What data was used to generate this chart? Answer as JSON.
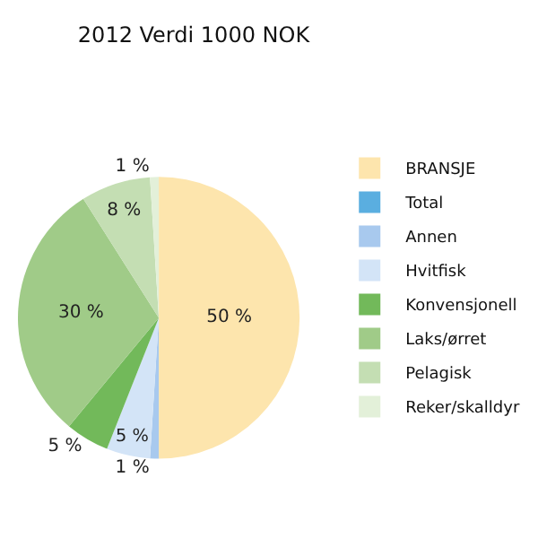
{
  "chart_data": {
    "type": "pie",
    "title": "2012 Verdi 1000 NOK",
    "categories": [
      "BRANSJE",
      "Total",
      "Annen",
      "Hvitfisk",
      "Konvensjonell",
      "Laks/ørret",
      "Pelagisk",
      "Reker/skalldyr"
    ],
    "values": [
      50,
      0,
      1,
      5,
      5,
      30,
      8,
      1
    ],
    "value_labels": [
      "50 %",
      null,
      "1 %",
      "5 %",
      "5 %",
      "30 %",
      "8 %",
      "1 %"
    ],
    "colors": [
      "#fde5ad",
      "#5aaee0",
      "#a8c9ee",
      "#d3e4f7",
      "#72b95a",
      "#a0cb88",
      "#c4deb3",
      "#e3f0d9"
    ],
    "legend": "right"
  }
}
